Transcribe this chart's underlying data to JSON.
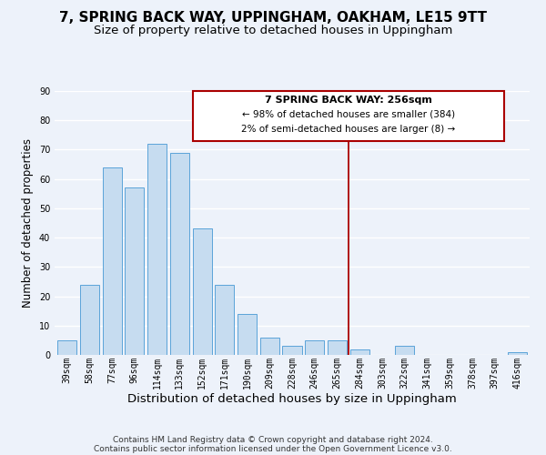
{
  "title": "7, SPRING BACK WAY, UPPINGHAM, OAKHAM, LE15 9TT",
  "subtitle": "Size of property relative to detached houses in Uppingham",
  "xlabel": "Distribution of detached houses by size in Uppingham",
  "ylabel": "Number of detached properties",
  "bar_labels": [
    "39sqm",
    "58sqm",
    "77sqm",
    "96sqm",
    "114sqm",
    "133sqm",
    "152sqm",
    "171sqm",
    "190sqm",
    "209sqm",
    "228sqm",
    "246sqm",
    "265sqm",
    "284sqm",
    "303sqm",
    "322sqm",
    "341sqm",
    "359sqm",
    "378sqm",
    "397sqm",
    "416sqm"
  ],
  "bar_values": [
    5,
    24,
    64,
    57,
    72,
    69,
    43,
    24,
    14,
    6,
    3,
    5,
    5,
    2,
    0,
    3,
    0,
    0,
    0,
    0,
    1
  ],
  "bar_color": "#c6dcf0",
  "bar_edge_color": "#5ba3d9",
  "vline_x_index": 12.5,
  "vline_color": "#aa0000",
  "ylim": [
    0,
    90
  ],
  "yticks": [
    0,
    10,
    20,
    30,
    40,
    50,
    60,
    70,
    80,
    90
  ],
  "annotation_title": "7 SPRING BACK WAY: 256sqm",
  "annotation_line1": "← 98% of detached houses are smaller (384)",
  "annotation_line2": "2% of semi-detached houses are larger (8) →",
  "footer1": "Contains HM Land Registry data © Crown copyright and database right 2024.",
  "footer2": "Contains public sector information licensed under the Open Government Licence v3.0.",
  "background_color": "#edf2fa",
  "grid_color": "#ffffff",
  "title_fontsize": 11,
  "subtitle_fontsize": 9.5,
  "tick_fontsize": 7,
  "xlabel_fontsize": 9.5,
  "ylabel_fontsize": 8.5,
  "footer_fontsize": 6.5
}
